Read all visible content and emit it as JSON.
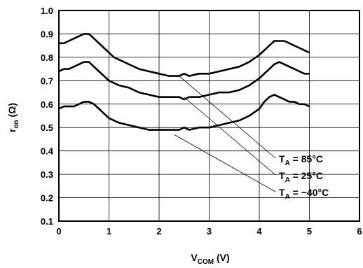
{
  "chart_data": {
    "type": "line",
    "xlabel": {
      "main": "V",
      "sub": "COM",
      "tail": " (V)"
    },
    "ylabel": {
      "main": "r",
      "sub": "on",
      "tail": " (Ω)"
    },
    "xlim": [
      0,
      6
    ],
    "ylim": [
      0.1,
      1.0
    ],
    "xticks": [
      0,
      1,
      2,
      3,
      4,
      5,
      6
    ],
    "yticks": [
      0.1,
      0.2,
      0.3,
      0.4,
      0.5,
      0.6,
      0.7,
      0.8,
      0.9,
      1.0
    ],
    "grid": true,
    "series": [
      {
        "label": {
          "main": "T",
          "sub": "A",
          "tail": " = 85°C"
        },
        "points": [
          [
            0,
            0.86
          ],
          [
            0.1,
            0.86
          ],
          [
            0.2,
            0.87
          ],
          [
            0.3,
            0.88
          ],
          [
            0.4,
            0.89
          ],
          [
            0.5,
            0.9
          ],
          [
            0.6,
            0.9
          ],
          [
            0.7,
            0.88
          ],
          [
            0.8,
            0.86
          ],
          [
            0.9,
            0.84
          ],
          [
            1.0,
            0.82
          ],
          [
            1.1,
            0.8
          ],
          [
            1.2,
            0.79
          ],
          [
            1.4,
            0.77
          ],
          [
            1.6,
            0.75
          ],
          [
            1.8,
            0.74
          ],
          [
            2.0,
            0.73
          ],
          [
            2.2,
            0.72
          ],
          [
            2.4,
            0.72
          ],
          [
            2.5,
            0.73
          ],
          [
            2.6,
            0.72
          ],
          [
            2.8,
            0.73
          ],
          [
            3.0,
            0.73
          ],
          [
            3.2,
            0.74
          ],
          [
            3.4,
            0.75
          ],
          [
            3.6,
            0.76
          ],
          [
            3.8,
            0.78
          ],
          [
            4.0,
            0.81
          ],
          [
            4.2,
            0.85
          ],
          [
            4.3,
            0.87
          ],
          [
            4.4,
            0.87
          ],
          [
            4.5,
            0.87
          ],
          [
            4.6,
            0.86
          ],
          [
            4.7,
            0.85
          ],
          [
            4.8,
            0.84
          ],
          [
            4.9,
            0.83
          ],
          [
            5.0,
            0.82
          ]
        ],
        "annotation_target": [
          2.4,
          0.72
        ]
      },
      {
        "label": {
          "main": "T",
          "sub": "A",
          "tail": " = 25°C"
        },
        "points": [
          [
            0,
            0.74
          ],
          [
            0.1,
            0.75
          ],
          [
            0.2,
            0.75
          ],
          [
            0.3,
            0.76
          ],
          [
            0.4,
            0.77
          ],
          [
            0.5,
            0.78
          ],
          [
            0.6,
            0.78
          ],
          [
            0.7,
            0.76
          ],
          [
            0.8,
            0.74
          ],
          [
            0.9,
            0.72
          ],
          [
            1.0,
            0.7
          ],
          [
            1.1,
            0.69
          ],
          [
            1.2,
            0.68
          ],
          [
            1.4,
            0.67
          ],
          [
            1.6,
            0.65
          ],
          [
            1.8,
            0.64
          ],
          [
            2.0,
            0.63
          ],
          [
            2.2,
            0.63
          ],
          [
            2.4,
            0.63
          ],
          [
            2.5,
            0.62
          ],
          [
            2.6,
            0.63
          ],
          [
            2.8,
            0.63
          ],
          [
            3.0,
            0.64
          ],
          [
            3.2,
            0.65
          ],
          [
            3.4,
            0.65
          ],
          [
            3.6,
            0.66
          ],
          [
            3.8,
            0.68
          ],
          [
            4.0,
            0.71
          ],
          [
            4.2,
            0.75
          ],
          [
            4.3,
            0.77
          ],
          [
            4.4,
            0.78
          ],
          [
            4.5,
            0.77
          ],
          [
            4.6,
            0.76
          ],
          [
            4.7,
            0.75
          ],
          [
            4.8,
            0.74
          ],
          [
            4.9,
            0.73
          ],
          [
            5.0,
            0.73
          ]
        ],
        "annotation_target": [
          2.5,
          0.63
        ]
      },
      {
        "label": {
          "main": "T",
          "sub": "A",
          "tail": " = −40°C"
        },
        "points": [
          [
            0,
            0.58
          ],
          [
            0.1,
            0.59
          ],
          [
            0.2,
            0.59
          ],
          [
            0.3,
            0.59
          ],
          [
            0.4,
            0.6
          ],
          [
            0.5,
            0.61
          ],
          [
            0.6,
            0.61
          ],
          [
            0.7,
            0.6
          ],
          [
            0.8,
            0.58
          ],
          [
            0.9,
            0.56
          ],
          [
            1.0,
            0.54
          ],
          [
            1.1,
            0.53
          ],
          [
            1.2,
            0.52
          ],
          [
            1.4,
            0.51
          ],
          [
            1.6,
            0.5
          ],
          [
            1.8,
            0.49
          ],
          [
            2.0,
            0.49
          ],
          [
            2.2,
            0.49
          ],
          [
            2.4,
            0.49
          ],
          [
            2.5,
            0.5
          ],
          [
            2.6,
            0.49
          ],
          [
            2.8,
            0.5
          ],
          [
            3.0,
            0.5
          ],
          [
            3.2,
            0.51
          ],
          [
            3.4,
            0.52
          ],
          [
            3.6,
            0.53
          ],
          [
            3.8,
            0.55
          ],
          [
            4.0,
            0.58
          ],
          [
            4.1,
            0.61
          ],
          [
            4.2,
            0.63
          ],
          [
            4.3,
            0.64
          ],
          [
            4.4,
            0.63
          ],
          [
            4.5,
            0.62
          ],
          [
            4.6,
            0.61
          ],
          [
            4.7,
            0.61
          ],
          [
            4.8,
            0.6
          ],
          [
            4.9,
            0.6
          ],
          [
            5.0,
            0.59
          ]
        ],
        "annotation_target": [
          2.3,
          0.47
        ]
      }
    ]
  }
}
